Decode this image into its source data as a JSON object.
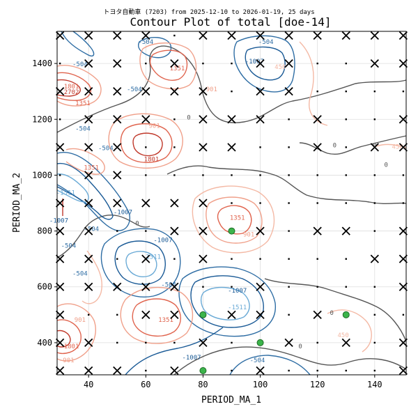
{
  "chart_data": {
    "type": "contour",
    "suptitle": "トヨタ自動車 (7203) from 2025-12-10 to 2026-01-19, 25 days",
    "title": "Contour Plot of total [doe-14]",
    "xlabel": "PERIOD_MA_1",
    "ylabel": "PERIOD_MA_2",
    "xlim": [
      29,
      151
    ],
    "ylim": [
      285,
      1515
    ],
    "xticks": [
      40,
      60,
      80,
      100,
      120,
      140
    ],
    "yticks": [
      400,
      600,
      800,
      1000,
      1200,
      1400
    ],
    "grid": true,
    "grid_x": [
      30,
      40,
      50,
      60,
      70,
      80,
      90,
      100,
      110,
      120,
      130,
      140,
      150
    ],
    "grid_y": [
      300,
      400,
      500,
      600,
      700,
      800,
      900,
      1000,
      1100,
      1200,
      1300,
      1400,
      1500
    ],
    "contour_labels": [
      {
        "x": 34,
        "y": 1290,
        "text": "2702",
        "color": "#c0392b"
      },
      {
        "x": 37,
        "y": 1390,
        "text": "-504",
        "color": "#2e6da4"
      },
      {
        "x": 34,
        "y": 1310,
        "text": "1801",
        "color": "#e0644e"
      },
      {
        "x": 38,
        "y": 1250,
        "text": "1351",
        "color": "#e0644e"
      },
      {
        "x": 38,
        "y": 1160,
        "text": "-504",
        "color": "#2e6da4"
      },
      {
        "x": 46,
        "y": 1090,
        "text": "-504",
        "color": "#2e6da4"
      },
      {
        "x": 41,
        "y": 1020,
        "text": "1351",
        "color": "#e0644e"
      },
      {
        "x": 62,
        "y": 1050,
        "text": "1801",
        "color": "#c0392b"
      },
      {
        "x": 63,
        "y": 1170,
        "text": "901",
        "color": "#f0a08a"
      },
      {
        "x": 60,
        "y": 1470,
        "text": "-504",
        "color": "#2e6da4"
      },
      {
        "x": 71,
        "y": 1375,
        "text": "1351",
        "color": "#e0644e"
      },
      {
        "x": 83,
        "y": 1300,
        "text": "901",
        "color": "#f0a08a"
      },
      {
        "x": 102,
        "y": 1470,
        "text": "-504",
        "color": "#2e6da4"
      },
      {
        "x": 98,
        "y": 1400,
        "text": "-1007",
        "color": "#1a5a96"
      },
      {
        "x": 107,
        "y": 1380,
        "text": "450",
        "color": "#f4b9a5"
      },
      {
        "x": 75,
        "y": 1200,
        "text": "0",
        "color": "#555555"
      },
      {
        "x": 56,
        "y": 1300,
        "text": "-504",
        "color": "#2e6da4"
      },
      {
        "x": 32,
        "y": 930,
        "text": "-1511",
        "color": "#6aaad6"
      },
      {
        "x": 29.6,
        "y": 830,
        "text": "-1007",
        "color": "#1a5a96"
      },
      {
        "x": 41,
        "y": 800,
        "text": "-504",
        "color": "#2e6da4"
      },
      {
        "x": 33,
        "y": 740,
        "text": "-504",
        "color": "#2e6da4"
      },
      {
        "x": 52,
        "y": 860,
        "text": "-1007",
        "color": "#1a5a96"
      },
      {
        "x": 62,
        "y": 700,
        "text": "-1511",
        "color": "#6aaad6"
      },
      {
        "x": 66,
        "y": 760,
        "text": "-1007",
        "color": "#1a5a96"
      },
      {
        "x": 68,
        "y": 600,
        "text": "-504",
        "color": "#2e6da4"
      },
      {
        "x": 92,
        "y": 840,
        "text": "1351",
        "color": "#e0644e"
      },
      {
        "x": 96,
        "y": 780,
        "text": "901",
        "color": "#f0a08a"
      },
      {
        "x": 92,
        "y": 580,
        "text": "-1007",
        "color": "#1a5a96"
      },
      {
        "x": 92,
        "y": 520,
        "text": "-1511",
        "color": "#6aaad6"
      },
      {
        "x": 67,
        "y": 475,
        "text": "1351",
        "color": "#e0644e"
      },
      {
        "x": 37,
        "y": 475,
        "text": "901",
        "color": "#f0a08a"
      },
      {
        "x": 34,
        "y": 380,
        "text": "1801",
        "color": "#e0644e"
      },
      {
        "x": 33,
        "y": 330,
        "text": "901",
        "color": "#f0a08a"
      },
      {
        "x": 76,
        "y": 340,
        "text": "-1007",
        "color": "#1a5a96"
      },
      {
        "x": 99,
        "y": 330,
        "text": "-504",
        "color": "#2e6da4"
      },
      {
        "x": 114,
        "y": 380,
        "text": "0",
        "color": "#555555"
      },
      {
        "x": 125,
        "y": 500,
        "text": "0",
        "color": "#555555"
      },
      {
        "x": 129,
        "y": 420,
        "text": "450",
        "color": "#f4b9a5"
      },
      {
        "x": 126,
        "y": 1100,
        "text": "0",
        "color": "#555555"
      },
      {
        "x": 140,
        "y": 1100,
        "text": "0",
        "color": "#555555"
      },
      {
        "x": 148,
        "y": 1095,
        "text": "450",
        "color": "#f4b9a5"
      },
      {
        "x": 144,
        "y": 1030,
        "text": "0",
        "color": "#555555"
      },
      {
        "x": 37,
        "y": 640,
        "text": "-504",
        "color": "#2e6da4"
      },
      {
        "x": 57,
        "y": 820,
        "text": "0",
        "color": "#555555"
      }
    ],
    "crosses": [
      [
        30,
        1500
      ],
      [
        40,
        1500
      ],
      [
        50,
        1500
      ],
      [
        60,
        1500
      ],
      [
        80,
        1500
      ],
      [
        90,
        1500
      ],
      [
        100,
        1500
      ],
      [
        110,
        1500
      ],
      [
        120,
        1500
      ],
      [
        130,
        1500
      ],
      [
        140,
        1500
      ],
      [
        150,
        1500
      ],
      [
        40,
        1400
      ],
      [
        50,
        1400
      ],
      [
        70,
        1400
      ],
      [
        100,
        1400
      ],
      [
        110,
        1400
      ],
      [
        140,
        1400
      ],
      [
        150,
        1400
      ],
      [
        30,
        1300
      ],
      [
        40,
        1300
      ],
      [
        50,
        1300
      ],
      [
        60,
        1300
      ],
      [
        70,
        1300
      ],
      [
        80,
        1300
      ],
      [
        100,
        1300
      ],
      [
        110,
        1300
      ],
      [
        40,
        1200
      ],
      [
        50,
        1200
      ],
      [
        60,
        1200
      ],
      [
        80,
        1200
      ],
      [
        90,
        1200
      ],
      [
        100,
        1200
      ],
      [
        120,
        1200
      ],
      [
        150,
        1200
      ],
      [
        30,
        1100
      ],
      [
        40,
        1100
      ],
      [
        50,
        1100
      ],
      [
        80,
        1100
      ],
      [
        90,
        1100
      ],
      [
        120,
        1100
      ],
      [
        140,
        1100
      ],
      [
        150,
        1100
      ],
      [
        40,
        1000
      ],
      [
        50,
        1000
      ],
      [
        30,
        900
      ],
      [
        40,
        900
      ],
      [
        50,
        900
      ],
      [
        60,
        900
      ],
      [
        70,
        900
      ],
      [
        80,
        900
      ],
      [
        30,
        800
      ],
      [
        40,
        800
      ],
      [
        70,
        800
      ],
      [
        80,
        800
      ],
      [
        100,
        800
      ],
      [
        120,
        800
      ],
      [
        130,
        800
      ],
      [
        150,
        800
      ],
      [
        30,
        700
      ],
      [
        40,
        700
      ],
      [
        60,
        700
      ],
      [
        80,
        700
      ],
      [
        140,
        700
      ],
      [
        150,
        700
      ],
      [
        30,
        600
      ],
      [
        40,
        600
      ],
      [
        50,
        600
      ],
      [
        60,
        600
      ],
      [
        70,
        600
      ],
      [
        100,
        600
      ],
      [
        150,
        600
      ],
      [
        30,
        500
      ],
      [
        60,
        500
      ],
      [
        70,
        500
      ],
      [
        90,
        500
      ],
      [
        100,
        500
      ],
      [
        120,
        500
      ],
      [
        30,
        400
      ],
      [
        40,
        400
      ],
      [
        80,
        400
      ],
      [
        110,
        400
      ],
      [
        130,
        400
      ],
      [
        150,
        400
      ],
      [
        30,
        300
      ],
      [
        40,
        300
      ],
      [
        50,
        300
      ],
      [
        70,
        300
      ],
      [
        100,
        300
      ],
      [
        150,
        300
      ]
    ],
    "green_points": [
      [
        90,
        800
      ],
      [
        80,
        500
      ],
      [
        130,
        500
      ],
      [
        100,
        400
      ],
      [
        80,
        300
      ]
    ],
    "colors": {
      "red_strong": "#c0392b",
      "red_mid": "#e0644e",
      "red_light": "#f0a08a",
      "red_pale": "#f4b9a5",
      "zero": "#555555",
      "blue_dark": "#1a5a96",
      "blue_mid": "#2e6da4",
      "blue_light": "#6aaad6",
      "green_marker": "#3cb44b"
    }
  }
}
